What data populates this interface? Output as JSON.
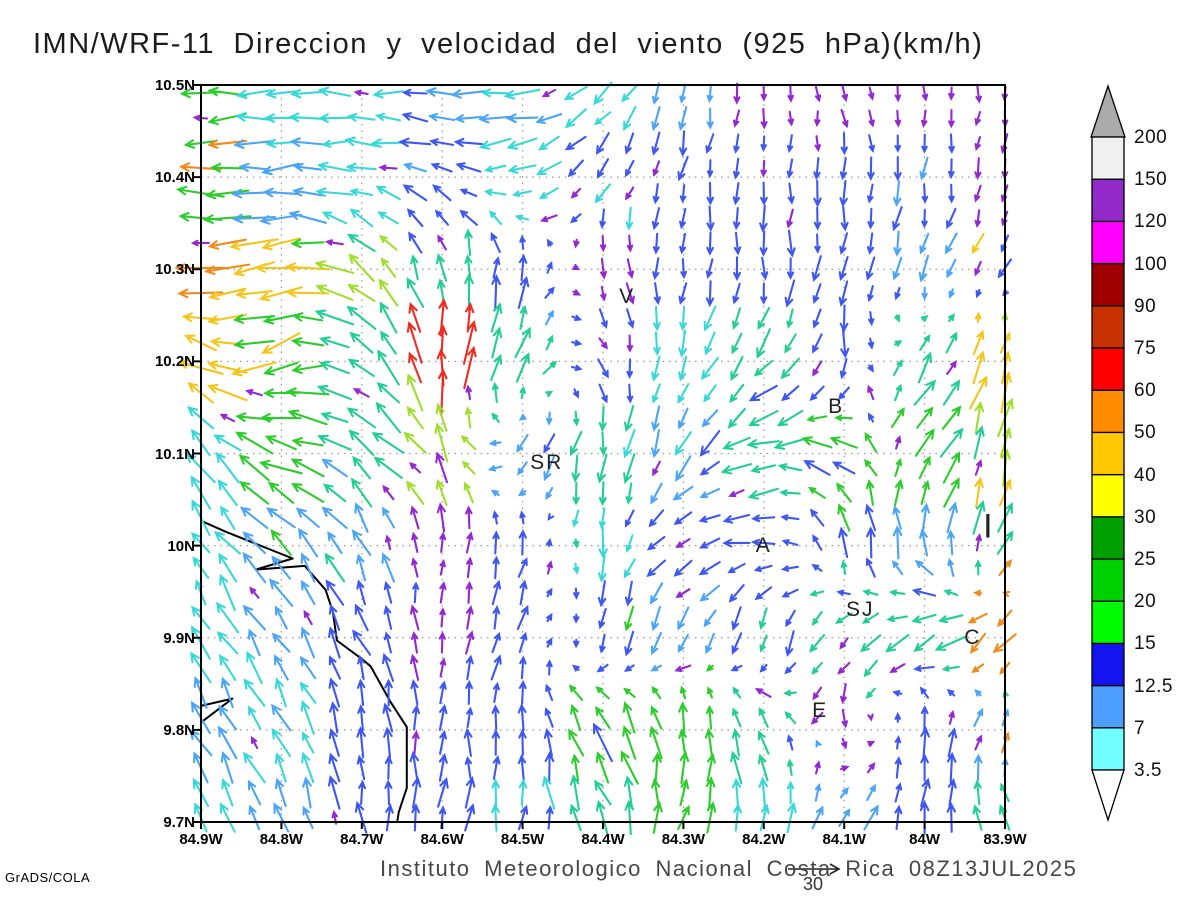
{
  "title": "IMN/WRF-11 Direccion y velocidad del viento (925 hPa)(km/h)",
  "footer": {
    "caption": "Instituto Meteorologico Nacional Costa Rica 08Z13JUL2025",
    "reference_arrow_label": "30",
    "credit": "GrADS/COLA"
  },
  "chart_data": {
    "type": "quiver",
    "title": "IMN/WRF-11 Direccion y velocidad del viento (925 hPa)(km/h)",
    "variable": "wind direction and speed",
    "level": "925 hPa",
    "units": "km/h",
    "valid_time": "08Z13JUL2025",
    "region": "Costa Rica (Central Valley / Nicoya Gulf area)",
    "grid_style": "dotted 0.1-degree graticule",
    "reference_speed_kmh": 30,
    "lon_tick_labels": [
      "84.9W",
      "84.8W",
      "84.7W",
      "84.6W",
      "84.5W",
      "84.4W",
      "84.3W",
      "84.2W",
      "84.1W",
      "84W",
      "83.9W"
    ],
    "lon_tick_values": [
      84.9,
      84.8,
      84.7,
      84.6,
      84.5,
      84.4,
      84.3,
      84.2,
      84.1,
      84.0,
      83.9
    ],
    "lat_tick_labels": [
      "10.5N",
      "10.4N",
      "10.3N",
      "10.2N",
      "10.1N",
      "10N",
      "9.9N",
      "9.8N",
      "9.7N"
    ],
    "lat_tick_values": [
      10.5,
      10.4,
      10.3,
      10.2,
      10.1,
      10.0,
      9.9,
      9.8,
      9.7
    ],
    "lon_deg_w": [
      84.9,
      83.9
    ],
    "lat_deg_n": [
      9.7,
      10.5
    ],
    "colorbar": {
      "tick_labels": [
        "3.5",
        "7",
        "12.5",
        "15",
        "20",
        "25",
        "30",
        "40",
        "50",
        "60",
        "75",
        "90",
        "100",
        "120",
        "150",
        "200"
      ],
      "levels": [
        3.5,
        7,
        12.5,
        15,
        20,
        25,
        30,
        40,
        50,
        60,
        75,
        90,
        100,
        120,
        150,
        200
      ],
      "segment_colors_bottom_to_top": [
        "#73FFFF",
        "#4D9FFF",
        "#1414F0",
        "#00FB00",
        "#00D200",
        "#00A000",
        "#FFFF00",
        "#FFC800",
        "#FF8C00",
        "#FF0000",
        "#C83200",
        "#A00000",
        "#FF00FF",
        "#9229C9",
        "#F0F0F0"
      ],
      "under_color": "#FFFFFF",
      "over_color": "#ABABAB"
    },
    "arrow_palette": {
      "purple": "#9327D1",
      "magenta": "#C400C4",
      "blue": "#3D57F0",
      "sky": "#4BA4F5",
      "cyan": "#38D8D8",
      "teal": "#22CD96",
      "green": "#2BCC2B",
      "ygreen": "#9FDE2C",
      "yellow": "#E8DC1A",
      "gold": "#F5C51B",
      "orange": "#F08A1C",
      "red": "#EF2B22"
    },
    "wind_control_grid": {
      "note": "coarse sample of plotted vectors; dir = screen pointing angle deg (0=E,90=N,180=W,270=S), len = arrow length px (30 km/h reference = 45 px), color = palette key",
      "lon_w": [
        84.9,
        84.8,
        84.7,
        84.6,
        84.5,
        84.4,
        84.3,
        84.2,
        84.1,
        84.0,
        83.9
      ],
      "lat_n": [
        10.5,
        10.4,
        10.3,
        10.2,
        10.1,
        10.0,
        9.9,
        9.8,
        9.7
      ],
      "nodes": [
        [
          [
            180,
            38,
            "green"
          ],
          [
            180,
            30,
            "cyan"
          ],
          [
            180,
            28,
            "cyan"
          ],
          [
            180,
            28,
            "sky"
          ],
          [
            185,
            28,
            "sky"
          ],
          [
            225,
            22,
            "cyan"
          ],
          [
            255,
            18,
            "sky"
          ],
          [
            270,
            13,
            "purple"
          ],
          [
            295,
            12,
            "purple"
          ],
          [
            275,
            13,
            "purple"
          ],
          [
            265,
            14,
            "purple"
          ]
        ],
        [
          [
            180,
            36,
            "green"
          ],
          [
            185,
            32,
            "sky"
          ],
          [
            170,
            26,
            "cyan"
          ],
          [
            150,
            22,
            "blue"
          ],
          [
            200,
            26,
            "cyan"
          ],
          [
            235,
            20,
            "blue"
          ],
          [
            260,
            20,
            "blue"
          ],
          [
            265,
            18,
            "blue"
          ],
          [
            270,
            20,
            "blue"
          ],
          [
            265,
            18,
            "blue"
          ],
          [
            260,
            15,
            "purple"
          ]
        ],
        [
          [
            185,
            42,
            "orange"
          ],
          [
            185,
            44,
            "gold"
          ],
          [
            135,
            30,
            "ygreen"
          ],
          [
            95,
            26,
            "teal"
          ],
          [
            75,
            24,
            "blue"
          ],
          [
            280,
            15,
            "purple"
          ],
          [
            265,
            18,
            "blue"
          ],
          [
            270,
            22,
            "blue"
          ],
          [
            255,
            20,
            "blue"
          ],
          [
            250,
            22,
            "sky"
          ],
          [
            245,
            18,
            "blue"
          ]
        ],
        [
          [
            160,
            40,
            "gold"
          ],
          [
            200,
            38,
            "green"
          ],
          [
            150,
            34,
            "teal"
          ],
          [
            88,
            42,
            "red"
          ],
          [
            70,
            30,
            "teal"
          ],
          [
            300,
            18,
            "blue"
          ],
          [
            255,
            22,
            "cyan"
          ],
          [
            230,
            26,
            "teal"
          ],
          [
            265,
            22,
            "blue"
          ],
          [
            60,
            30,
            "teal"
          ],
          [
            75,
            32,
            "gold"
          ]
        ],
        [
          [
            130,
            32,
            "cyan"
          ],
          [
            160,
            36,
            "green"
          ],
          [
            145,
            30,
            "teal"
          ],
          [
            120,
            30,
            "ygreen"
          ],
          [
            240,
            24,
            "sky"
          ],
          [
            260,
            26,
            "teal"
          ],
          [
            240,
            26,
            "sky"
          ],
          [
            195,
            28,
            "teal"
          ],
          [
            150,
            30,
            "green"
          ],
          [
            45,
            30,
            "green"
          ],
          [
            80,
            34,
            "ygreen"
          ]
        ],
        [
          [
            125,
            30,
            "cyan"
          ],
          [
            130,
            30,
            "sky"
          ],
          [
            115,
            28,
            "sky"
          ],
          [
            85,
            20,
            "purple"
          ],
          [
            80,
            22,
            "blue"
          ],
          [
            270,
            22,
            "cyan"
          ],
          [
            200,
            22,
            "blue"
          ],
          [
            185,
            20,
            "blue"
          ],
          [
            90,
            24,
            "blue"
          ],
          [
            110,
            26,
            "sky"
          ],
          [
            55,
            28,
            "teal"
          ]
        ],
        [
          [
            120,
            30,
            "cyan"
          ],
          [
            125,
            28,
            "sky"
          ],
          [
            115,
            26,
            "blue"
          ],
          [
            85,
            18,
            "purple"
          ],
          [
            70,
            20,
            "blue"
          ],
          [
            260,
            22,
            "blue"
          ],
          [
            245,
            22,
            "sky"
          ],
          [
            260,
            20,
            "blue"
          ],
          [
            225,
            26,
            "teal"
          ],
          [
            210,
            30,
            "teal"
          ],
          [
            230,
            28,
            "orange"
          ]
        ],
        [
          [
            120,
            30,
            "sky"
          ],
          [
            115,
            28,
            "cyan"
          ],
          [
            100,
            26,
            "blue"
          ],
          [
            85,
            24,
            "blue"
          ],
          [
            95,
            22,
            "blue"
          ],
          [
            120,
            34,
            "green"
          ],
          [
            90,
            30,
            "green"
          ],
          [
            120,
            28,
            "teal"
          ],
          [
            280,
            14,
            "purple"
          ],
          [
            80,
            24,
            "blue"
          ],
          [
            60,
            22,
            "sky"
          ]
        ],
        [
          [
            115,
            30,
            "cyan"
          ],
          [
            110,
            28,
            "sky"
          ],
          [
            95,
            26,
            "blue"
          ],
          [
            85,
            24,
            "blue"
          ],
          [
            80,
            26,
            "cyan"
          ],
          [
            110,
            30,
            "teal"
          ],
          [
            70,
            28,
            "green"
          ],
          [
            75,
            26,
            "cyan"
          ],
          [
            65,
            24,
            "sky"
          ],
          [
            85,
            26,
            "blue"
          ],
          [
            120,
            24,
            "teal"
          ]
        ]
      ]
    },
    "city_markers": [
      {
        "label": "V",
        "lon_w": 84.37,
        "lat_n": 10.27,
        "size": 21
      },
      {
        "label": "B",
        "lon_w": 84.11,
        "lat_n": 10.15,
        "size": 21
      },
      {
        "label": "SR",
        "lon_w": 84.47,
        "lat_n": 10.09,
        "size": 21
      },
      {
        "label": "A",
        "lon_w": 84.2,
        "lat_n": 10.0,
        "size": 21
      },
      {
        "label": "SJ",
        "lon_w": 84.08,
        "lat_n": 9.93,
        "size": 21
      },
      {
        "label": "C",
        "lon_w": 83.94,
        "lat_n": 9.9,
        "size": 21
      },
      {
        "label": "E",
        "lon_w": 84.13,
        "lat_n": 9.82,
        "size": 21
      },
      {
        "label": "I",
        "lon_w": 83.92,
        "lat_n": 10.02,
        "size": 34
      }
    ],
    "coastline_deg": [
      [
        [
          84.9,
          10.027
        ],
        [
          84.869,
          10.015
        ],
        [
          84.786,
          9.986
        ],
        [
          84.832,
          9.974
        ],
        [
          84.771,
          9.978
        ],
        [
          84.745,
          9.952
        ],
        [
          84.736,
          9.928
        ],
        [
          84.731,
          9.897
        ],
        [
          84.7,
          9.877
        ],
        [
          84.689,
          9.869
        ],
        [
          84.664,
          9.83
        ],
        [
          84.644,
          9.803
        ],
        [
          84.644,
          9.737
        ],
        [
          84.654,
          9.711
        ],
        [
          84.656,
          9.7
        ]
      ],
      [
        [
          84.9,
          9.826
        ],
        [
          84.861,
          9.834
        ],
        [
          84.9,
          9.808
        ]
      ]
    ],
    "random_seed": 42
  }
}
